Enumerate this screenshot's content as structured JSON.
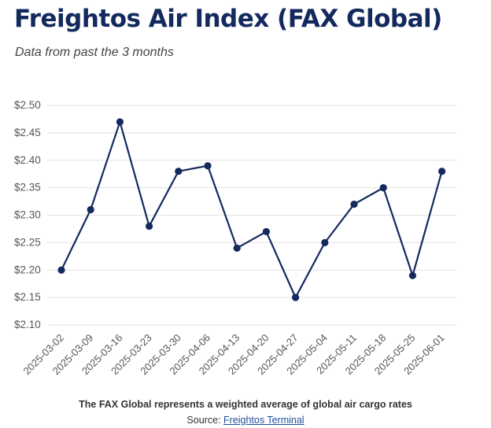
{
  "header": {
    "title": "Freightos Air Index (FAX Global)",
    "subtitle": "Data from past the 3 months"
  },
  "footer": {
    "note": "The FAX Global represents a weighted average of global air cargo rates",
    "source_label": "Source: ",
    "source_link": "Freightos Terminal"
  },
  "colors": {
    "line": "#142a5e",
    "grid": "#e3e3e3",
    "title": "#142a5e"
  },
  "chart_data": {
    "type": "line",
    "categories": [
      "2025-03-02",
      "2025-03-09",
      "2025-03-16",
      "2025-03-23",
      "2025-03-30",
      "2025-04-06",
      "2025-04-13",
      "2025-04-20",
      "2025-04-27",
      "2025-05-04",
      "2025-05-11",
      "2025-05-18",
      "2025-05-25",
      "2025-06-01"
    ],
    "series": [
      {
        "values": [
          2.2,
          2.31,
          2.47,
          2.28,
          2.38,
          2.39,
          2.24,
          2.27,
          2.15,
          2.25,
          2.32,
          2.35,
          2.19,
          2.38
        ]
      }
    ],
    "yticks": [
      2.1,
      2.15,
      2.2,
      2.25,
      2.3,
      2.35,
      2.4,
      2.45,
      2.5
    ],
    "ytick_labels": [
      "$2.10",
      "$2.15",
      "$2.20",
      "$2.25",
      "$2.30",
      "$2.35",
      "$2.40",
      "$2.45",
      "$2.50"
    ],
    "ylim": [
      2.1,
      2.5
    ],
    "grid": true,
    "legend": "none"
  }
}
